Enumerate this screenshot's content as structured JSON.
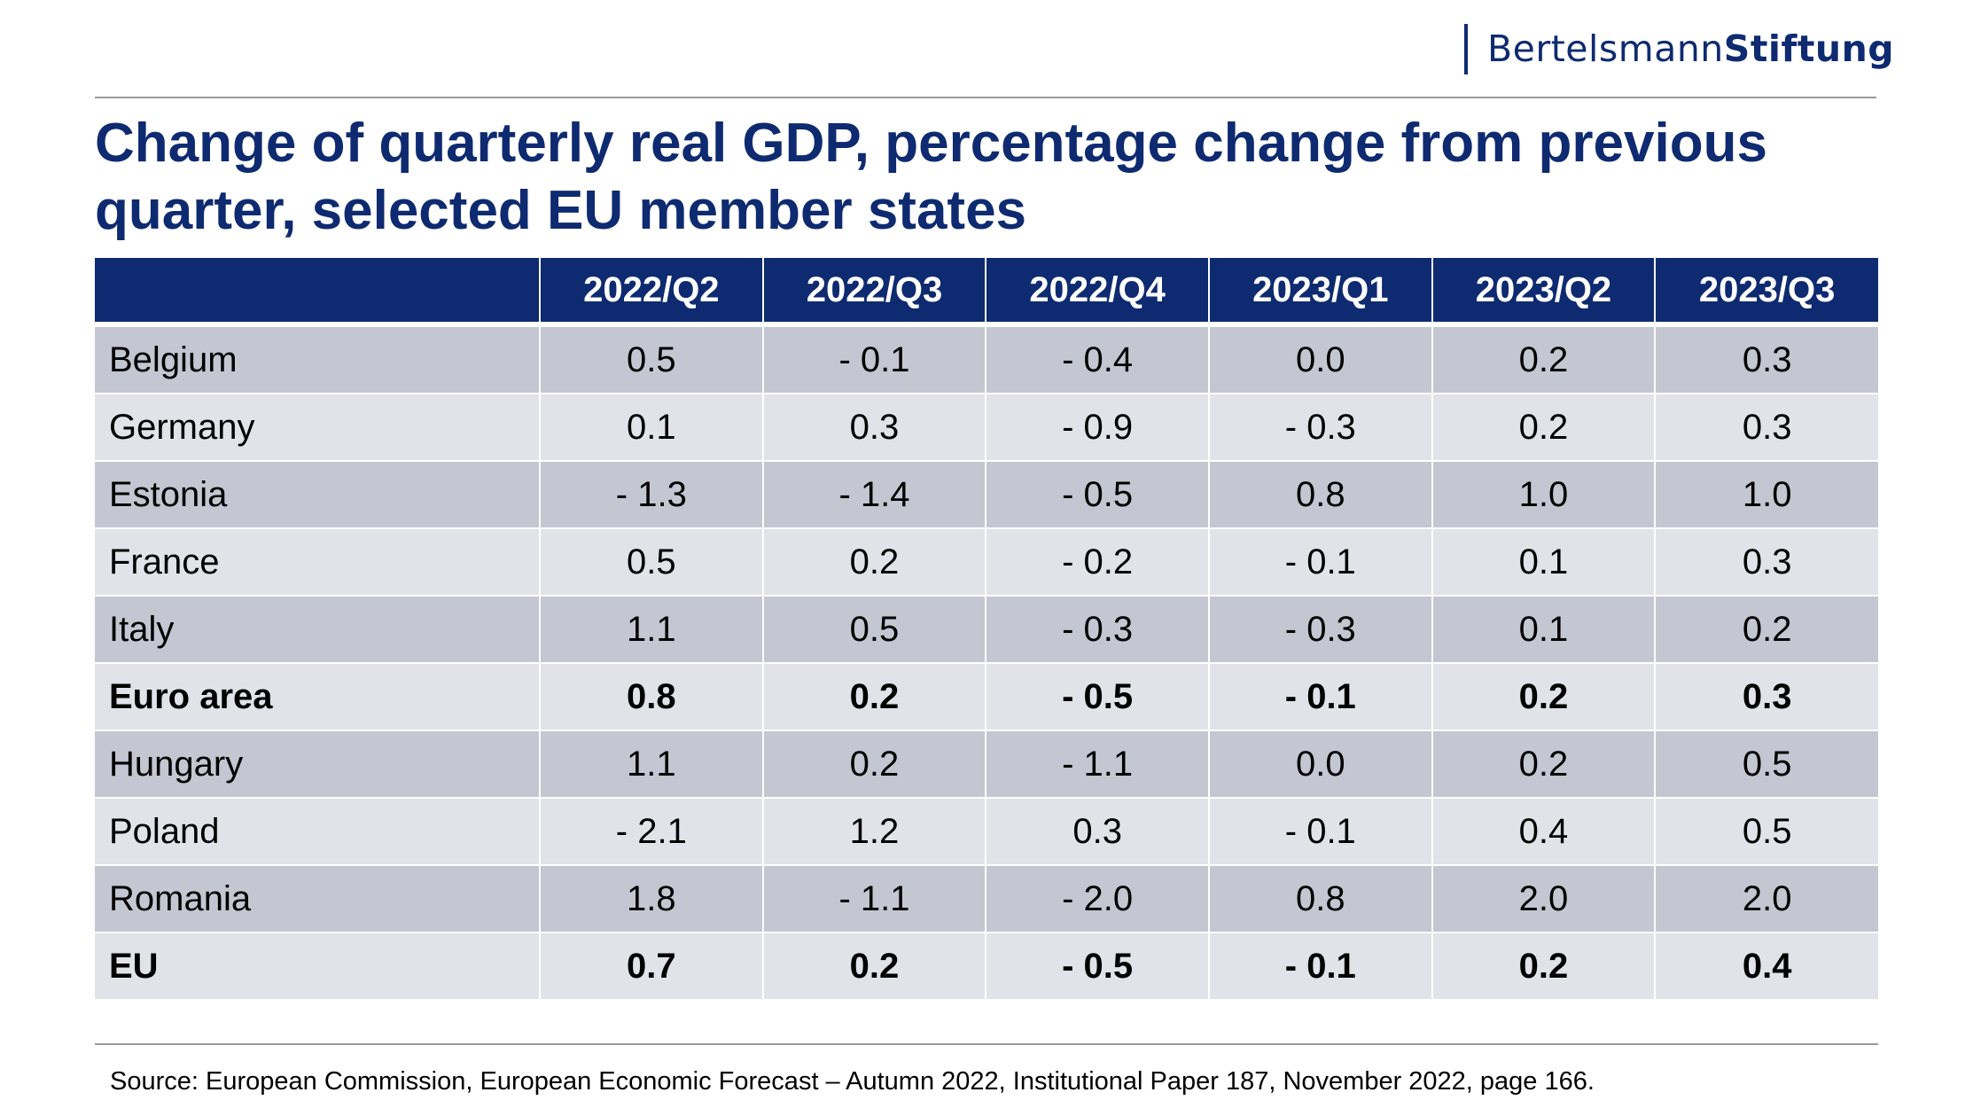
{
  "logo": {
    "light": "Bertelsmann",
    "bold": "Stiftung"
  },
  "title": "Change of quarterly real GDP, percentage change from previous quarter, selected EU member states",
  "table": {
    "corner": "",
    "columns": [
      "2022/Q2",
      "2022/Q3",
      "2022/Q4",
      "2023/Q1",
      "2023/Q2",
      "2023/Q3"
    ],
    "rows": [
      {
        "country": "Belgium",
        "values": [
          "0.5",
          "- 0.1",
          "- 0.4",
          "0.0",
          "0.2",
          "0.3"
        ]
      },
      {
        "country": "Germany",
        "values": [
          "0.1",
          "0.3",
          "- 0.9",
          "- 0.3",
          "0.2",
          "0.3"
        ]
      },
      {
        "country": "Estonia",
        "values": [
          "- 1.3",
          "- 1.4",
          "- 0.5",
          "0.8",
          "1.0",
          "1.0"
        ]
      },
      {
        "country": "France",
        "values": [
          "0.5",
          "0.2",
          "- 0.2",
          "- 0.1",
          "0.1",
          "0.3"
        ]
      },
      {
        "country": "Italy",
        "values": [
          "1.1",
          "0.5",
          "- 0.3",
          "- 0.3",
          "0.1",
          "0.2"
        ]
      },
      {
        "country": "Euro area",
        "values": [
          "0.8",
          "0.2",
          "- 0.5",
          "- 0.1",
          "0.2",
          "0.3"
        ]
      },
      {
        "country": "Hungary",
        "values": [
          "1.1",
          "0.2",
          "- 1.1",
          "0.0",
          "0.2",
          "0.5"
        ]
      },
      {
        "country": "Poland",
        "values": [
          "- 2.1",
          "1.2",
          "0.3",
          "- 0.1",
          "0.4",
          "0.5"
        ]
      },
      {
        "country": "Romania",
        "values": [
          "1.8",
          "- 1.1",
          "- 2.0",
          "0.8",
          "2.0",
          "2.0"
        ]
      },
      {
        "country": "EU",
        "values": [
          "0.7",
          "0.2",
          "- 0.5",
          "- 0.1",
          "0.2",
          "0.4"
        ]
      }
    ]
  },
  "chart_data": {
    "type": "table",
    "title": "Change of quarterly real GDP, percentage change from previous quarter, selected EU member states",
    "columns": [
      "2022/Q2",
      "2022/Q3",
      "2022/Q4",
      "2023/Q1",
      "2023/Q2",
      "2023/Q3"
    ],
    "rows": [
      "Belgium",
      "Germany",
      "Estonia",
      "France",
      "Italy",
      "Euro area",
      "Hungary",
      "Poland",
      "Romania",
      "EU"
    ],
    "values": [
      [
        0.5,
        -0.1,
        -0.4,
        0.0,
        0.2,
        0.3
      ],
      [
        0.1,
        0.3,
        -0.9,
        -0.3,
        0.2,
        0.3
      ],
      [
        -1.3,
        -1.4,
        -0.5,
        0.8,
        1.0,
        1.0
      ],
      [
        0.5,
        0.2,
        -0.2,
        -0.1,
        0.1,
        0.3
      ],
      [
        1.1,
        0.5,
        -0.3,
        -0.3,
        0.1,
        0.2
      ],
      [
        0.8,
        0.2,
        -0.5,
        -0.1,
        0.2,
        0.3
      ],
      [
        1.1,
        0.2,
        -1.1,
        0.0,
        0.2,
        0.5
      ],
      [
        -2.1,
        1.2,
        0.3,
        -0.1,
        0.4,
        0.5
      ],
      [
        1.8,
        -1.1,
        -2.0,
        0.8,
        2.0,
        2.0
      ],
      [
        0.7,
        0.2,
        -0.5,
        -0.1,
        0.2,
        0.4
      ]
    ],
    "bold_rows": [
      "Euro area",
      "EU"
    ],
    "source": "Source: European Commission, European Economic Forecast – Autumn 2022, Institutional Paper 187, November 2022, page 166."
  },
  "footer": {
    "source": "Source: European Commission, European Economic Forecast – Autumn 2022, Institutional Paper 187, November 2022, page 166."
  },
  "colors": {
    "brand_navy": "#0e2a70",
    "row_dark": "#c4c6d2",
    "row_light": "#e2e3e8"
  }
}
